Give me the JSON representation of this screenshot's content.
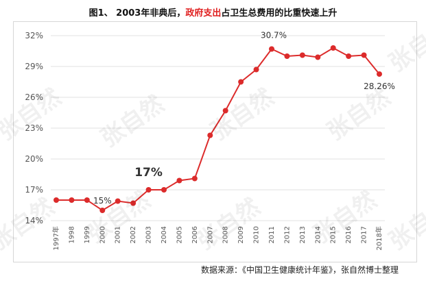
{
  "title": {
    "prefix": "图1、 2003年非典后，",
    "highlight": "政府支出",
    "suffix": "占卫生总费用的比重快速上升"
  },
  "source": "数据来源：《中国卫生健康统计年鉴》，张自然博士整理",
  "watermark": "张自然",
  "colors": {
    "line": "#dc2b2b",
    "grid": "#e1e1e1",
    "highlight": "#e02020"
  },
  "chart_data": {
    "type": "line",
    "categories": [
      "1997年",
      "1998",
      "1999",
      "2000",
      "2001",
      "2002",
      "2003",
      "2004",
      "2005",
      "2006",
      "2007",
      "2008",
      "2009",
      "2010",
      "2011",
      "2012",
      "2013",
      "2014",
      "2015",
      "2016",
      "2017",
      "2018年"
    ],
    "series": [
      {
        "values": [
          16.0,
          16.0,
          16.0,
          15.0,
          15.9,
          15.7,
          17.0,
          17.0,
          17.9,
          18.1,
          22.3,
          24.7,
          27.5,
          28.7,
          30.7,
          30.0,
          30.1,
          29.9,
          30.8,
          30.0,
          30.1,
          28.26
        ]
      }
    ],
    "ylim": [
      14,
      32
    ],
    "yticks": [
      "14%",
      "17%",
      "20%",
      "23%",
      "26%",
      "29%",
      "32%"
    ],
    "grid": true,
    "annotations": [
      {
        "index": 3,
        "text": "15%"
      },
      {
        "index": 6,
        "text": "17%"
      },
      {
        "index": 14,
        "text": "30.7%"
      },
      {
        "index": 21,
        "text": "28.26%"
      }
    ]
  }
}
